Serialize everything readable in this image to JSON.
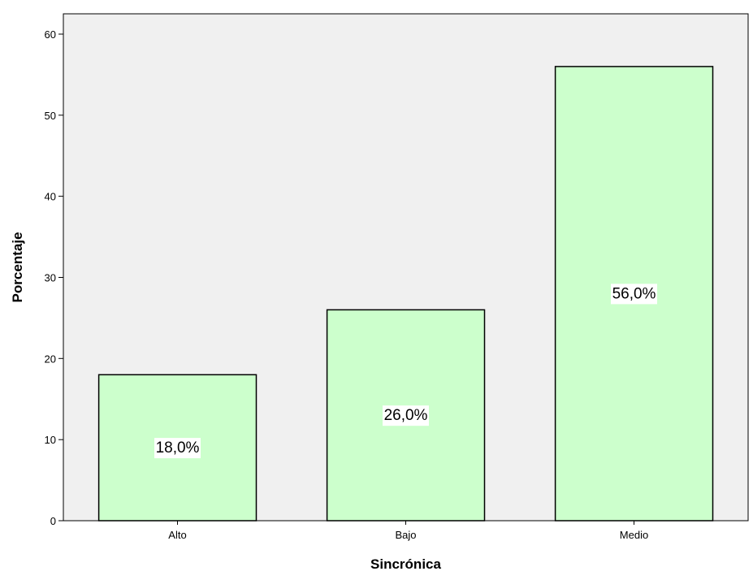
{
  "chart_data": {
    "type": "bar",
    "title": "",
    "xlabel": "Sincrónica",
    "ylabel": "Porcentaje",
    "categories": [
      "Alto",
      "Bajo",
      "Medio"
    ],
    "values": [
      18.0,
      26.0,
      56.0
    ],
    "data_labels": [
      "18,0%",
      "26,0%",
      "56,0%"
    ],
    "yticks": [
      "0",
      "10",
      "20",
      "30",
      "40",
      "50",
      "60"
    ],
    "ylim": [
      0,
      62.5
    ],
    "grid": false,
    "legend": "none",
    "colors": {
      "bar_fill": "#ccffcc",
      "bar_stroke": "#000000",
      "plot_background": "#f0f0f0",
      "label_background": "#ffffff"
    }
  }
}
